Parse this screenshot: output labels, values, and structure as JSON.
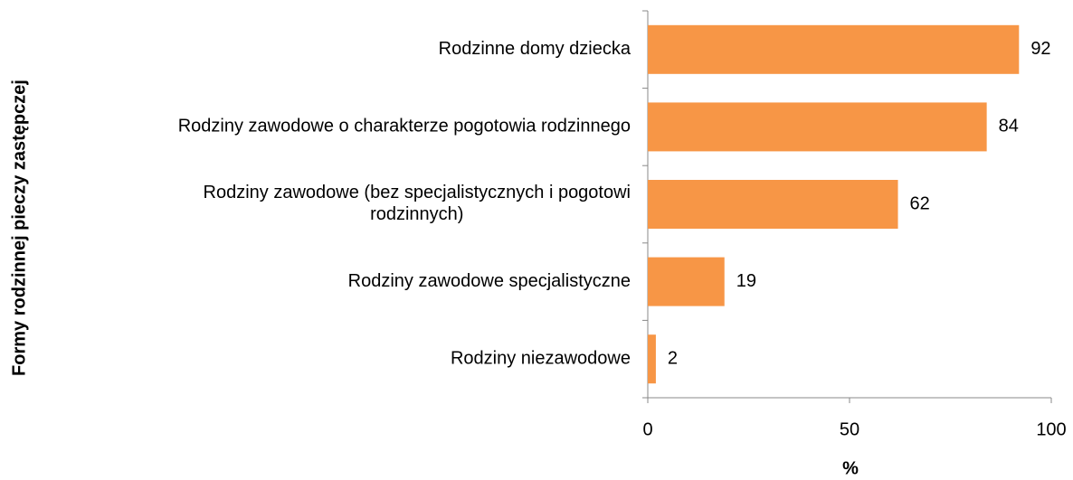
{
  "chart_data": {
    "type": "bar",
    "orientation": "horizontal",
    "y_axis_label": "Formy rodzinnej pieczy zastępczej",
    "x_axis_label": "%",
    "categories": [
      "Rodzinne domy dziecka",
      "Rodziny zawodowe o charakterze pogotowia rodzinnego",
      "Rodziny zawodowe (bez specjalistycznych i pogotowi rodzinnych)",
      "Rodziny zawodowe specjalistyczne",
      "Rodziny niezawodowe"
    ],
    "values": [
      92,
      84,
      62,
      19,
      2
    ],
    "color": "#f79646",
    "xlim": [
      0,
      100
    ],
    "xticks": [
      0,
      50,
      100
    ],
    "grid": false
  }
}
